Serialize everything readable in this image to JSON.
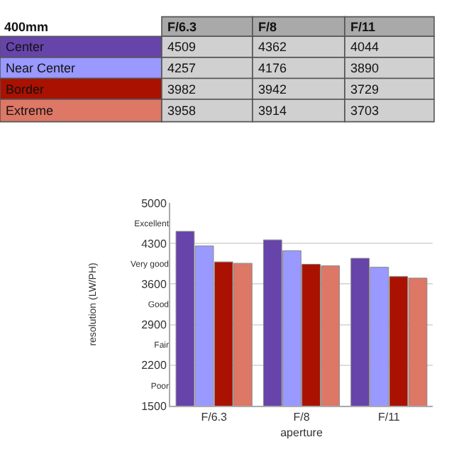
{
  "chart_data": {
    "type": "bar",
    "legend_title": "400mm",
    "xlabel": "aperture",
    "ylabel": "resolution (LW/PH)",
    "categories": [
      "F/6.3",
      "F/8",
      "F/11"
    ],
    "series": [
      {
        "name": "Center",
        "color": "#6644aa",
        "values": [
          4509,
          4362,
          4044
        ]
      },
      {
        "name": "Near Center",
        "color": "#9999ff",
        "values": [
          4257,
          4176,
          3890
        ]
      },
      {
        "name": "Border",
        "color": "#aa1100",
        "values": [
          3982,
          3942,
          3729
        ]
      },
      {
        "name": "Extreme",
        "color": "#dd7766",
        "values": [
          3958,
          3914,
          3703
        ]
      }
    ],
    "ylim": [
      1500,
      5000
    ],
    "yticks": [
      1500,
      {
        "value": 1850,
        "label": "Poor"
      },
      2200,
      {
        "value": 2550,
        "label": "Fair"
      },
      2900,
      {
        "value": 3250,
        "label": "Good"
      },
      3600,
      {
        "value": 3950,
        "label": "Very good"
      },
      4300,
      {
        "value": 4650,
        "label": "Excellent"
      },
      5000
    ],
    "grid": "y",
    "legend": false,
    "data_labels": true
  }
}
